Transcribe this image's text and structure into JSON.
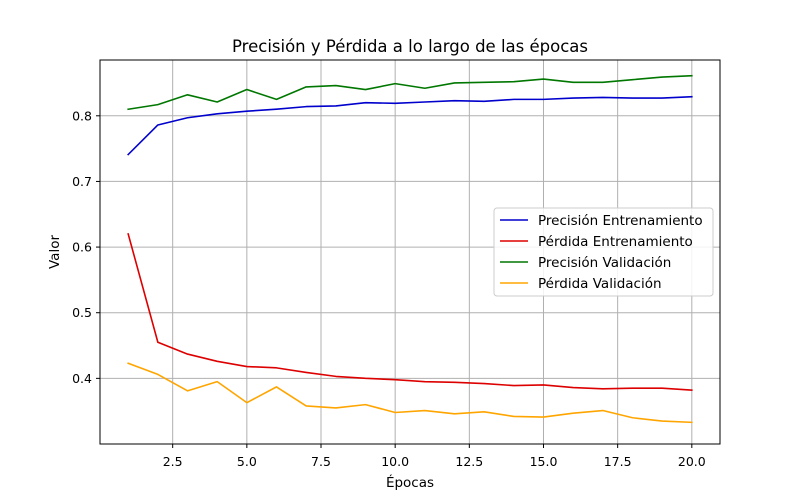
{
  "chart_data": {
    "type": "line",
    "title": "Precisión y Pérdida a lo largo de las épocas",
    "xlabel": "Épocas",
    "ylabel": "Valor",
    "xlim": [
      0.05,
      20.95
    ],
    "ylim": [
      0.3,
      0.885
    ],
    "xticks": [
      2.5,
      5.0,
      7.5,
      10.0,
      12.5,
      15.0,
      17.5,
      20.0
    ],
    "xtick_labels": [
      "2.5",
      "5.0",
      "7.5",
      "10.0",
      "12.5",
      "15.0",
      "17.5",
      "20.0"
    ],
    "yticks": [
      0.4,
      0.5,
      0.6,
      0.7,
      0.8
    ],
    "ytick_labels": [
      "0.4",
      "0.5",
      "0.6",
      "0.7",
      "0.8"
    ],
    "grid": true,
    "legend_position": "center-right",
    "x": [
      1,
      2,
      3,
      4,
      5,
      6,
      7,
      8,
      9,
      10,
      11,
      12,
      13,
      14,
      15,
      16,
      17,
      18,
      19,
      20
    ],
    "series": [
      {
        "name": "Precisión Entrenamiento",
        "color": "#0000cc",
        "values": [
          0.741,
          0.786,
          0.797,
          0.803,
          0.807,
          0.81,
          0.814,
          0.815,
          0.82,
          0.819,
          0.821,
          0.823,
          0.822,
          0.825,
          0.825,
          0.827,
          0.828,
          0.827,
          0.827,
          0.829
        ]
      },
      {
        "name": "Pérdida Entrenamiento",
        "color": "#dd0000",
        "values": [
          0.62,
          0.455,
          0.437,
          0.426,
          0.418,
          0.416,
          0.409,
          0.403,
          0.4,
          0.398,
          0.395,
          0.394,
          0.392,
          0.389,
          0.39,
          0.386,
          0.384,
          0.385,
          0.385,
          0.382
        ]
      },
      {
        "name": "Precisión Validación",
        "color": "#007700",
        "values": [
          0.81,
          0.817,
          0.832,
          0.821,
          0.84,
          0.825,
          0.844,
          0.846,
          0.84,
          0.849,
          0.842,
          0.85,
          0.851,
          0.852,
          0.856,
          0.851,
          0.851,
          0.855,
          0.859,
          0.861
        ]
      },
      {
        "name": "Pérdida Validación",
        "color": "#ffa500",
        "values": [
          0.423,
          0.406,
          0.381,
          0.395,
          0.363,
          0.387,
          0.358,
          0.355,
          0.36,
          0.348,
          0.351,
          0.346,
          0.349,
          0.342,
          0.341,
          0.347,
          0.351,
          0.34,
          0.335,
          0.333
        ]
      }
    ]
  }
}
